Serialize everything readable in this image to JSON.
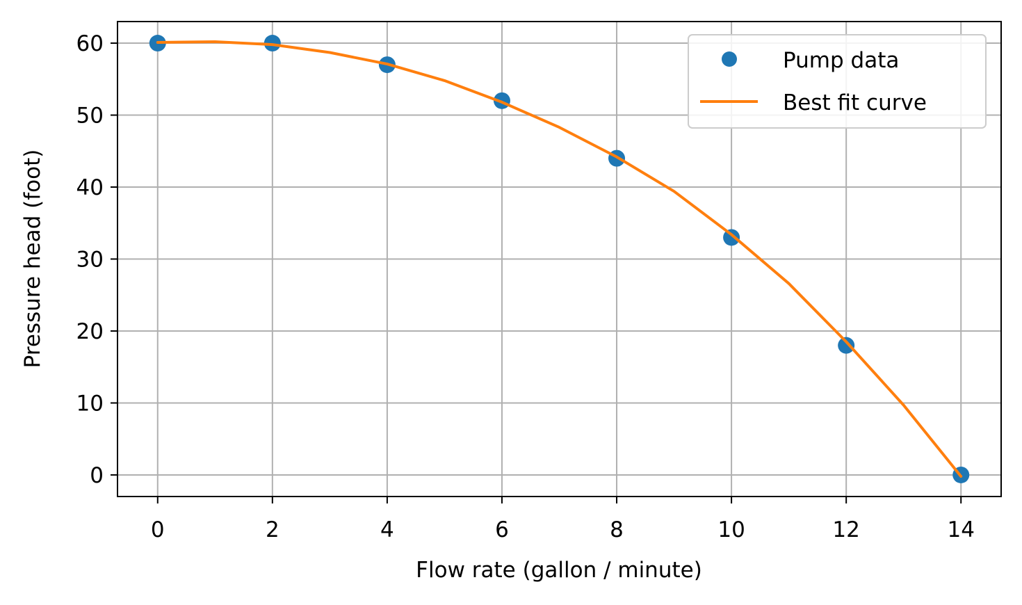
{
  "chart_data": {
    "type": "scatter",
    "title": "",
    "xlabel": "Flow rate (gallon / minute)",
    "ylabel": "Pressure head (foot)",
    "xlim": [
      -0.7,
      14.7
    ],
    "ylim": [
      -3,
      63
    ],
    "xticks": [
      0,
      2,
      4,
      6,
      8,
      10,
      12,
      14
    ],
    "yticks": [
      0,
      10,
      20,
      30,
      40,
      50,
      60
    ],
    "grid": true,
    "legend_position": "top-right",
    "series": [
      {
        "name": "Pump data",
        "kind": "points",
        "color": "#1f77b4",
        "x": [
          0,
          2,
          4,
          6,
          8,
          10,
          12,
          14
        ],
        "y": [
          60,
          60,
          57,
          52,
          44,
          33,
          18,
          0
        ]
      },
      {
        "name": "Best fit curve",
        "kind": "line",
        "color": "#ff7f0e",
        "x": [
          0,
          1,
          2,
          3,
          4,
          5,
          6,
          7,
          8,
          9,
          10,
          11,
          12,
          13,
          14
        ],
        "y": [
          60.1,
          60.2,
          59.8,
          58.7,
          57.1,
          54.8,
          51.8,
          48.3,
          44.2,
          39.4,
          33.4,
          26.6,
          18.5,
          9.7,
          -0.2
        ]
      }
    ]
  }
}
